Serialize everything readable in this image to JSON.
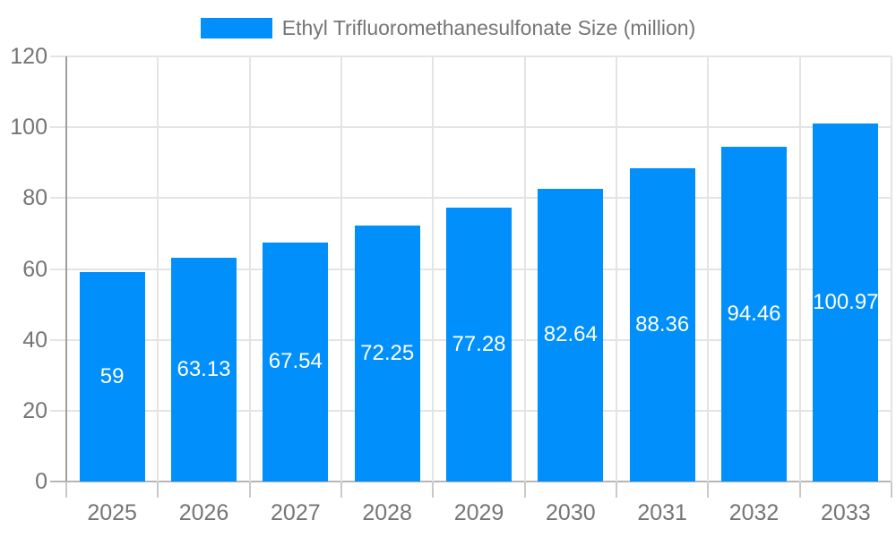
{
  "chart_data": {
    "type": "bar",
    "title": "Ethyl Trifluoromethanesulfonate Size (million)",
    "legend": [
      "Ethyl Trifluoromethanesulfonate Size (million)"
    ],
    "legend_position": "top",
    "categories": [
      "2025",
      "2026",
      "2027",
      "2028",
      "2029",
      "2030",
      "2031",
      "2032",
      "2033"
    ],
    "values": [
      59,
      63.13,
      67.54,
      72.25,
      77.28,
      82.64,
      88.36,
      94.46,
      100.97
    ],
    "value_labels": [
      "59",
      "63.13",
      "67.54",
      "72.25",
      "77.28",
      "82.64",
      "88.36",
      "94.46",
      "100.97"
    ],
    "xlabel": "",
    "ylabel": "",
    "ylim": [
      0,
      120
    ],
    "yticks": [
      0,
      20,
      40,
      60,
      80,
      100,
      120
    ],
    "grid": true,
    "value_label_placement": "inside-center",
    "colors": {
      "bar": "#008FFB",
      "bar_label": "#ffffff",
      "axis_text": "#757575",
      "legend_text": "#757575",
      "gridline": "#e4e4e4",
      "y_axis_line": "#9e9e9e",
      "x_axis_line": "#b6b6b6",
      "tick": "#c9c9c9",
      "background": "#ffffff"
    }
  }
}
